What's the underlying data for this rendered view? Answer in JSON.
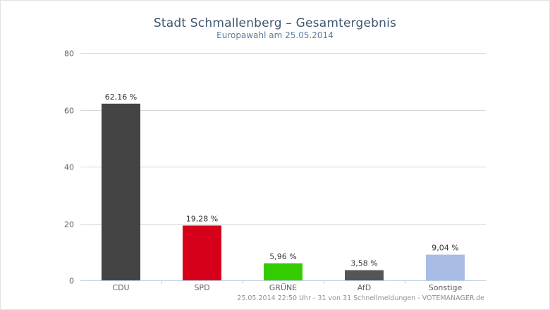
{
  "chart_data": {
    "type": "bar",
    "title": "Stadt Schmallenberg – Gesamtergebnis",
    "subtitle": "Europawahl am 25.05.2014",
    "xlabel": "",
    "ylabel": "",
    "ylim": [
      0,
      80
    ],
    "yticks": [
      0,
      20,
      40,
      60,
      80
    ],
    "grid": true,
    "legend": "none",
    "categories": [
      "CDU",
      "SPD",
      "GRÜNE",
      "AfD",
      "Sonstige"
    ],
    "values": [
      62.16,
      19.28,
      5.96,
      3.58,
      9.04
    ],
    "data_labels": [
      "62,16 %",
      "19,28 %",
      "5,96 %",
      "3,58 %",
      "9,04 %"
    ],
    "colors": [
      "#444444",
      "#d7001b",
      "#33cc00",
      "#555555",
      "#a8bce6"
    ]
  },
  "credits": "25.05.2014 22:50 Uhr - 31 von 31 Schnellmeldungen - VOTEMANAGER.de"
}
